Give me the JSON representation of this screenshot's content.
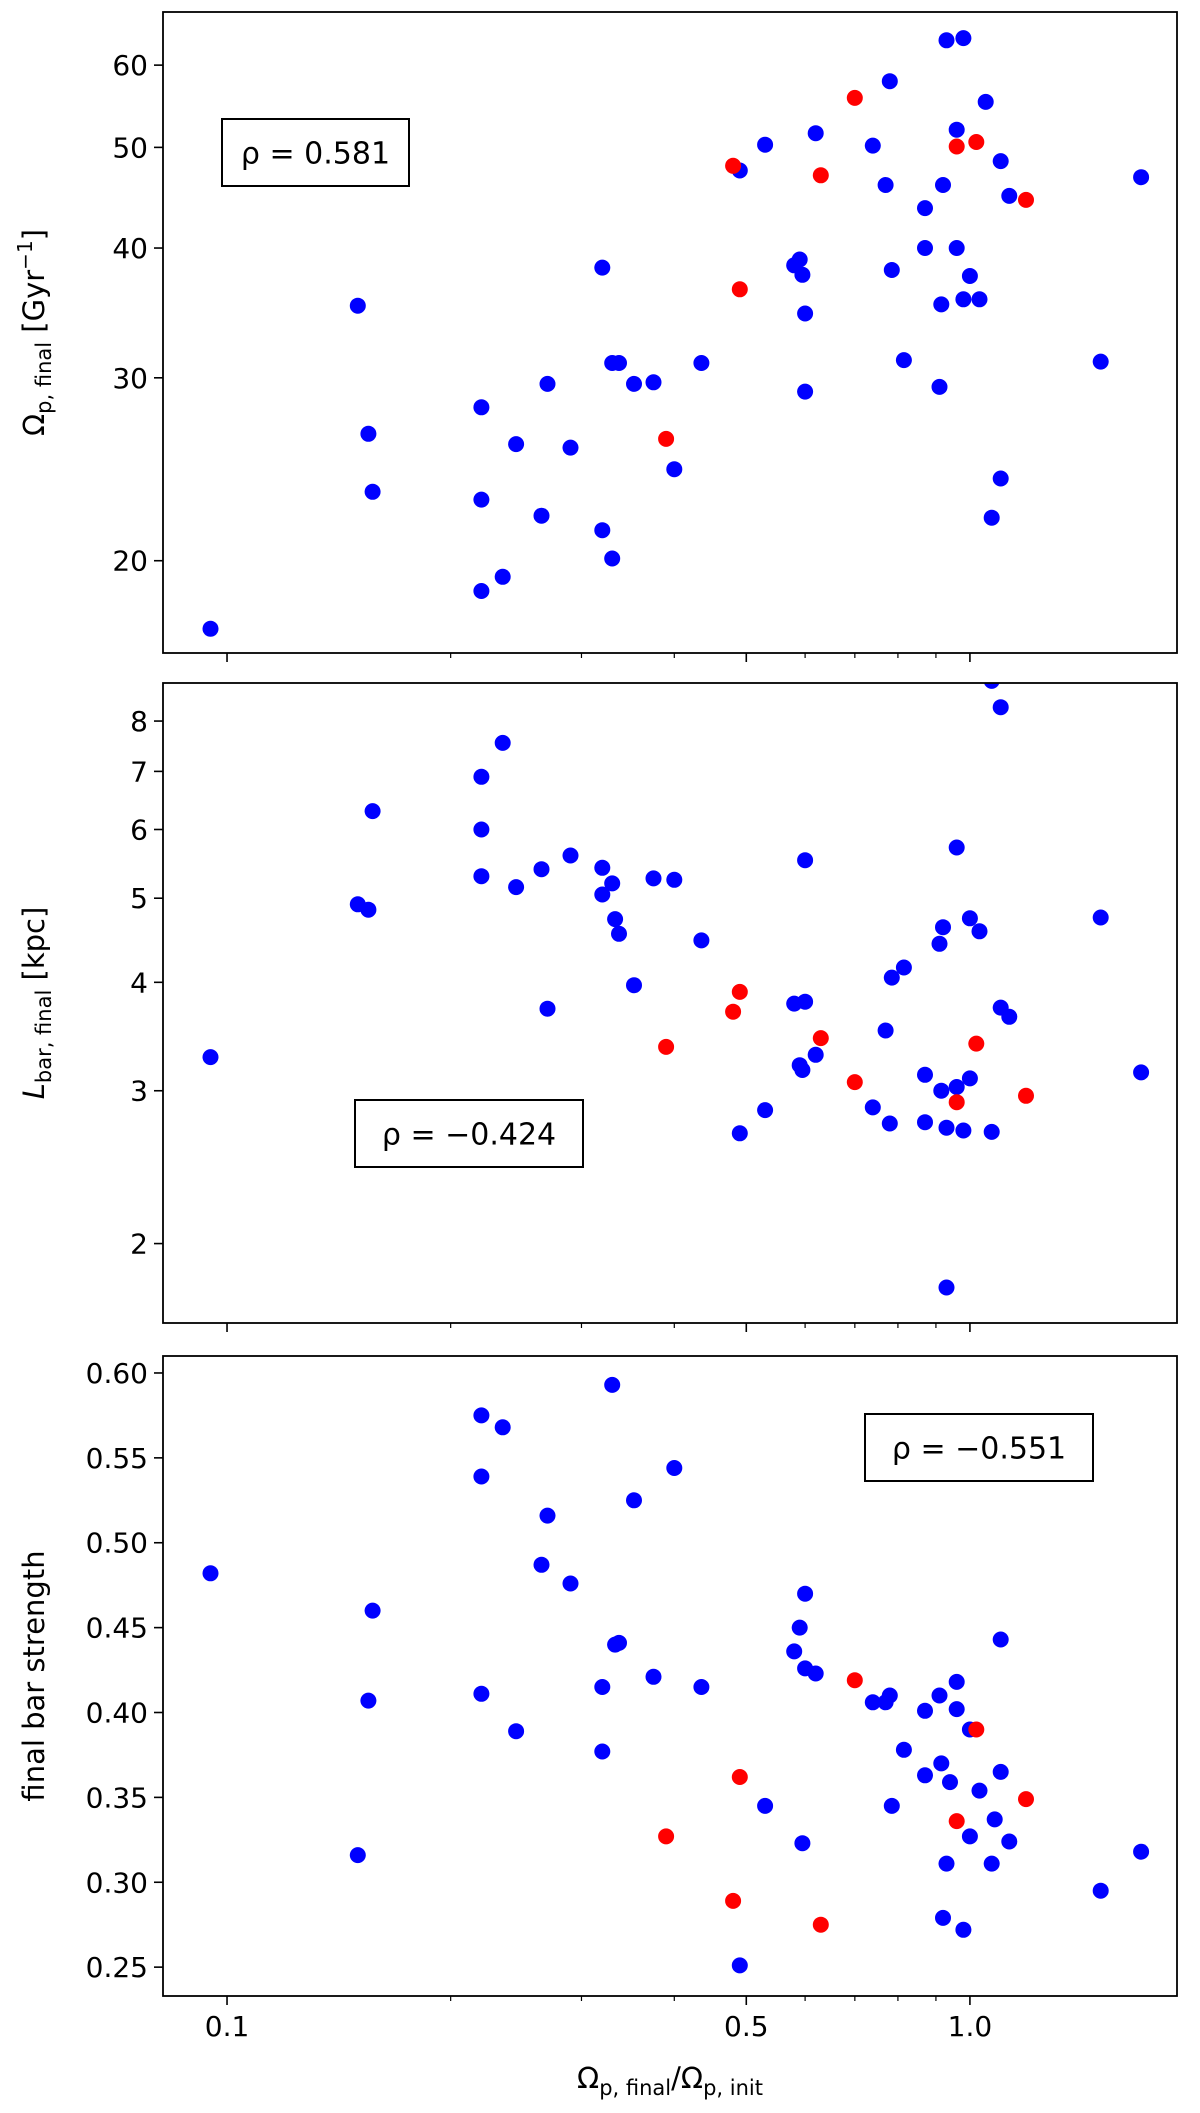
{
  "chart_data": [
    {
      "type": "scatter",
      "panel": "top",
      "xscale": "log",
      "yscale": "log",
      "xlim": [
        0.082,
        1.9
      ],
      "ylim": [
        16.3,
        67.5
      ],
      "xlabel": "",
      "ylabel": {
        "main": "Ω",
        "sub": "p, final",
        "rest": " [Gyr",
        "sup": "−1",
        "end": "]"
      },
      "yticks": [
        20,
        30,
        40,
        50,
        60
      ],
      "ytick_labels": [
        "20",
        "30",
        "40",
        "50",
        "60"
      ],
      "annotation": {
        "text": "ρ = 0.581",
        "position": "upper-left"
      },
      "series": [
        {
          "color": "#0000ff",
          "points": [
            [
              0.095,
              17.2
            ],
            [
              0.15,
              35.2
            ],
            [
              0.155,
              26.5
            ],
            [
              0.157,
              23.3
            ],
            [
              0.22,
              28.1
            ],
            [
              0.22,
              22.9
            ],
            [
              0.22,
              18.7
            ],
            [
              0.235,
              19.3
            ],
            [
              0.245,
              25.9
            ],
            [
              0.265,
              22.1
            ],
            [
              0.27,
              29.6
            ],
            [
              0.29,
              25.7
            ],
            [
              0.32,
              38.3
            ],
            [
              0.32,
              21.4
            ],
            [
              0.33,
              31.0
            ],
            [
              0.33,
              20.1
            ],
            [
              0.337,
              31.0
            ],
            [
              0.353,
              29.6
            ],
            [
              0.375,
              29.7
            ],
            [
              0.4,
              24.5
            ],
            [
              0.435,
              31.0
            ],
            [
              0.49,
              47.5
            ],
            [
              0.53,
              50.3
            ],
            [
              0.58,
              38.5
            ],
            [
              0.59,
              39.0
            ],
            [
              0.595,
              37.7
            ],
            [
              0.6,
              34.6
            ],
            [
              0.6,
              29.1
            ],
            [
              0.62,
              51.6
            ],
            [
              0.74,
              50.2
            ],
            [
              0.77,
              46.0
            ],
            [
              0.78,
              57.9
            ],
            [
              0.785,
              38.1
            ],
            [
              0.815,
              31.2
            ],
            [
              0.87,
              43.7
            ],
            [
              0.87,
              40.0
            ],
            [
              0.91,
              29.4
            ],
            [
              0.915,
              35.3
            ],
            [
              0.92,
              46.0
            ],
            [
              0.93,
              63.4
            ],
            [
              0.96,
              40.0
            ],
            [
              0.96,
              52.0
            ],
            [
              0.98,
              35.7
            ],
            [
              0.98,
              63.7
            ],
            [
              1.0,
              37.6
            ],
            [
              1.03,
              35.7
            ],
            [
              1.05,
              55.3
            ],
            [
              1.07,
              22.0
            ],
            [
              1.1,
              48.5
            ],
            [
              1.1,
              24.0
            ],
            [
              1.13,
              44.9
            ],
            [
              1.5,
              31.1
            ],
            [
              1.7,
              46.8
            ]
          ]
        },
        {
          "color": "#ff0000",
          "points": [
            [
              0.48,
              48.0
            ],
            [
              0.49,
              36.5
            ],
            [
              0.39,
              26.2
            ],
            [
              0.63,
              47.0
            ],
            [
              0.7,
              55.8
            ],
            [
              0.96,
              50.1
            ],
            [
              1.02,
              50.6
            ],
            [
              1.19,
              44.5
            ]
          ]
        }
      ]
    },
    {
      "type": "scatter",
      "panel": "middle",
      "xscale": "log",
      "yscale": "log",
      "xlim": [
        0.082,
        1.9
      ],
      "ylim": [
        1.62,
        8.85
      ],
      "xlabel": "",
      "ylabel": {
        "main": "L",
        "sub": "bar, final",
        "rest": " [kpc]",
        "sup": "",
        "end": ""
      },
      "yticks": [
        2,
        3,
        4,
        5,
        6,
        7,
        8
      ],
      "ytick_labels": [
        "2",
        "3",
        "4",
        "5",
        "6",
        "7",
        "8"
      ],
      "annotation": {
        "text": "ρ = −0.424",
        "position": "lower-left"
      },
      "series": [
        {
          "color": "#0000ff",
          "points": [
            [
              0.095,
              3.28
            ],
            [
              0.15,
              4.92
            ],
            [
              0.155,
              4.85
            ],
            [
              0.157,
              6.3
            ],
            [
              0.22,
              6.9
            ],
            [
              0.22,
              6.0
            ],
            [
              0.22,
              5.3
            ],
            [
              0.235,
              7.55
            ],
            [
              0.245,
              5.15
            ],
            [
              0.265,
              5.4
            ],
            [
              0.27,
              3.73
            ],
            [
              0.29,
              5.6
            ],
            [
              0.32,
              5.42
            ],
            [
              0.32,
              5.05
            ],
            [
              0.33,
              5.2
            ],
            [
              0.333,
              4.73
            ],
            [
              0.337,
              4.55
            ],
            [
              0.353,
              3.97
            ],
            [
              0.375,
              5.27
            ],
            [
              0.4,
              5.25
            ],
            [
              0.435,
              4.47
            ],
            [
              0.49,
              2.68
            ],
            [
              0.53,
              2.85
            ],
            [
              0.58,
              3.78
            ],
            [
              0.59,
              3.21
            ],
            [
              0.595,
              3.17
            ],
            [
              0.6,
              5.53
            ],
            [
              0.6,
              3.8
            ],
            [
              0.62,
              3.3
            ],
            [
              0.74,
              2.87
            ],
            [
              0.77,
              3.52
            ],
            [
              0.78,
              2.75
            ],
            [
              0.785,
              4.05
            ],
            [
              0.815,
              4.16
            ],
            [
              0.87,
              3.13
            ],
            [
              0.87,
              2.76
            ],
            [
              0.91,
              4.43
            ],
            [
              0.915,
              3.0
            ],
            [
              0.92,
              4.63
            ],
            [
              0.93,
              2.72
            ],
            [
              0.93,
              1.78
            ],
            [
              0.96,
              5.72
            ],
            [
              0.96,
              3.03
            ],
            [
              0.98,
              2.7
            ],
            [
              1.0,
              3.1
            ],
            [
              1.0,
              4.74
            ],
            [
              1.03,
              4.58
            ],
            [
              1.07,
              2.69
            ],
            [
              1.07,
              8.9
            ],
            [
              1.1,
              8.3
            ],
            [
              1.1,
              3.74
            ],
            [
              1.13,
              3.65
            ],
            [
              1.5,
              4.75
            ],
            [
              1.7,
              3.15
            ]
          ]
        },
        {
          "color": "#ff0000",
          "points": [
            [
              0.39,
              3.37
            ],
            [
              0.48,
              3.7
            ],
            [
              0.49,
              3.9
            ],
            [
              0.63,
              3.45
            ],
            [
              0.7,
              3.07
            ],
            [
              0.96,
              2.91
            ],
            [
              1.02,
              3.4
            ],
            [
              1.19,
              2.96
            ]
          ]
        }
      ]
    },
    {
      "type": "scatter",
      "panel": "bottom",
      "xscale": "log",
      "yscale": "linear",
      "xlim": [
        0.082,
        1.9
      ],
      "ylim": [
        0.233,
        0.61
      ],
      "xlabel": {
        "main": "Ω",
        "sub": "p, final",
        "mid": "/Ω",
        "sub2": "p, init"
      },
      "ylabel": {
        "main": "final bar strength",
        "sub": "",
        "rest": "",
        "sup": "",
        "end": ""
      },
      "xticks": [
        0.1,
        0.5,
        1.0
      ],
      "xtick_labels": [
        "0.1",
        "0.5",
        "1.0"
      ],
      "yticks": [
        0.25,
        0.3,
        0.35,
        0.4,
        0.45,
        0.5,
        0.55,
        0.6
      ],
      "ytick_labels": [
        "0.25",
        "0.30",
        "0.35",
        "0.40",
        "0.45",
        "0.50",
        "0.55",
        "0.60"
      ],
      "annotation": {
        "text": "ρ = −0.551",
        "position": "upper-right"
      },
      "series": [
        {
          "color": "#0000ff",
          "points": [
            [
              0.095,
              0.482
            ],
            [
              0.15,
              0.316
            ],
            [
              0.155,
              0.407
            ],
            [
              0.157,
              0.46
            ],
            [
              0.22,
              0.575
            ],
            [
              0.22,
              0.539
            ],
            [
              0.22,
              0.411
            ],
            [
              0.235,
              0.568
            ],
            [
              0.245,
              0.389
            ],
            [
              0.265,
              0.487
            ],
            [
              0.27,
              0.516
            ],
            [
              0.29,
              0.476
            ],
            [
              0.32,
              0.415
            ],
            [
              0.32,
              0.377
            ],
            [
              0.33,
              0.593
            ],
            [
              0.333,
              0.44
            ],
            [
              0.337,
              0.441
            ],
            [
              0.353,
              0.525
            ],
            [
              0.375,
              0.421
            ],
            [
              0.4,
              0.544
            ],
            [
              0.435,
              0.415
            ],
            [
              0.49,
              0.251
            ],
            [
              0.53,
              0.345
            ],
            [
              0.58,
              0.436
            ],
            [
              0.59,
              0.45
            ],
            [
              0.595,
              0.323
            ],
            [
              0.6,
              0.47
            ],
            [
              0.6,
              0.426
            ],
            [
              0.62,
              0.423
            ],
            [
              0.74,
              0.406
            ],
            [
              0.77,
              0.406
            ],
            [
              0.78,
              0.41
            ],
            [
              0.785,
              0.345
            ],
            [
              0.815,
              0.378
            ],
            [
              0.87,
              0.401
            ],
            [
              0.87,
              0.363
            ],
            [
              0.91,
              0.41
            ],
            [
              0.915,
              0.37
            ],
            [
              0.92,
              0.279
            ],
            [
              0.93,
              0.311
            ],
            [
              0.94,
              0.359
            ],
            [
              0.96,
              0.418
            ],
            [
              0.96,
              0.402
            ],
            [
              0.98,
              0.272
            ],
            [
              1.0,
              0.327
            ],
            [
              1.0,
              0.39
            ],
            [
              1.03,
              0.354
            ],
            [
              1.07,
              0.311
            ],
            [
              1.08,
              0.337
            ],
            [
              1.1,
              0.443
            ],
            [
              1.1,
              0.365
            ],
            [
              1.13,
              0.324
            ],
            [
              1.5,
              0.295
            ],
            [
              1.7,
              0.318
            ]
          ]
        },
        {
          "color": "#ff0000",
          "points": [
            [
              0.39,
              0.327
            ],
            [
              0.48,
              0.289
            ],
            [
              0.49,
              0.362
            ],
            [
              0.63,
              0.275
            ],
            [
              0.7,
              0.419
            ],
            [
              0.96,
              0.336
            ],
            [
              1.02,
              0.39
            ],
            [
              1.19,
              0.349
            ]
          ]
        }
      ]
    }
  ]
}
